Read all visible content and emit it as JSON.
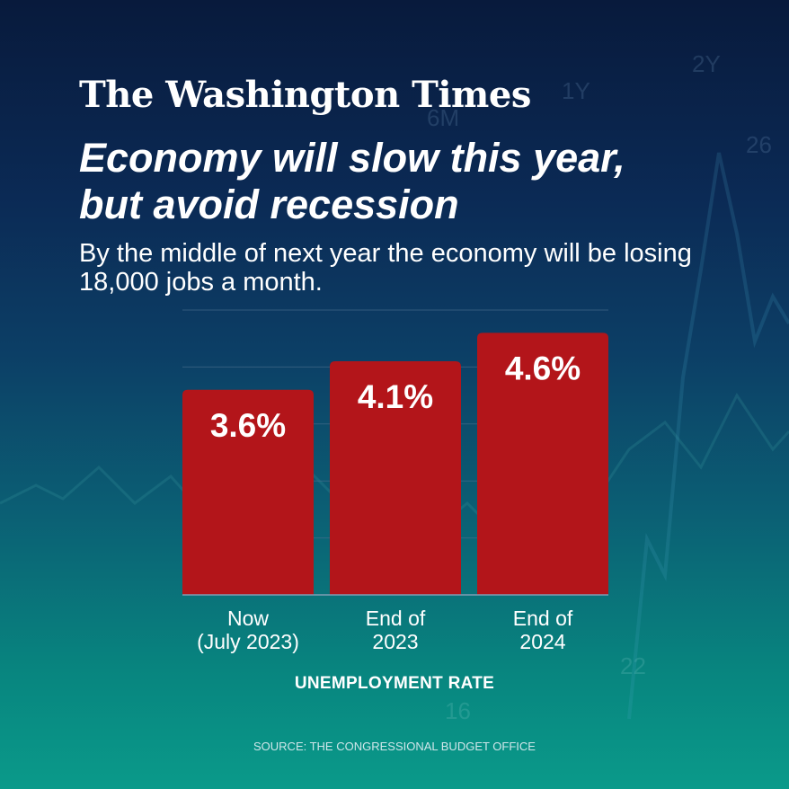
{
  "brand": {
    "logo_text": "The Washington Times"
  },
  "headline": {
    "line1": "Economy will slow this year,",
    "line2": "but avoid recession"
  },
  "subhead": "By the middle of next year the economy will be losing 18,000 jobs a month.",
  "colors": {
    "bar": "#b3151a",
    "gridline": "#4d6f8f",
    "baseline": "#7f9db3"
  },
  "chart_data": {
    "type": "bar",
    "categories": [
      [
        "Now",
        "(July 2023)"
      ],
      [
        "End of",
        "2023"
      ],
      [
        "End of",
        "2024"
      ]
    ],
    "values": [
      3.6,
      4.1,
      4.6
    ],
    "value_labels": [
      "3.6%",
      "4.1%",
      "4.6%"
    ],
    "xlabel": "UNEMPLOYMENT RATE",
    "ylabel": "",
    "ylim": [
      0,
      5
    ],
    "grid": true
  },
  "source": "SOURCE: THE CONGRESSIONAL BUDGET OFFICE"
}
